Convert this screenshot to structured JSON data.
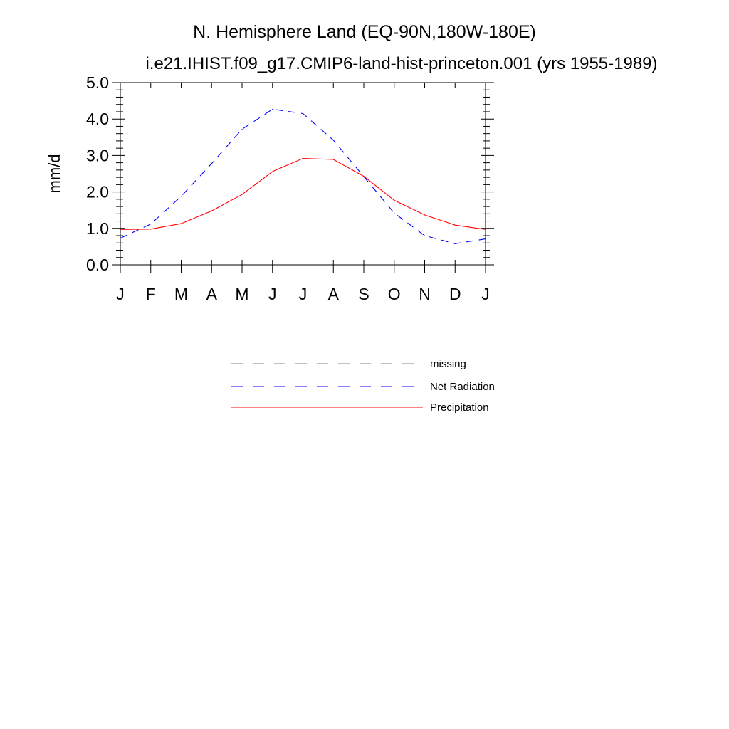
{
  "chart_data": {
    "type": "line",
    "title": "N. Hemisphere Land (EQ-90N,180W-180E)",
    "subtitle": "i.e21.IHIST.f09_g17.CMIP6-land-hist-princeton.001 (yrs 1955-1989)",
    "xlabel": "",
    "ylabel": "mm/d",
    "categories": [
      "J",
      "F",
      "M",
      "A",
      "M",
      "J",
      "J",
      "A",
      "S",
      "O",
      "N",
      "D",
      "J"
    ],
    "ylim": [
      0,
      5
    ],
    "yticks": [
      "0.0",
      "1.0",
      "2.0",
      "3.0",
      "4.0",
      "5.0"
    ],
    "ytick_values": [
      0,
      1,
      2,
      3,
      4,
      5
    ],
    "grid": false,
    "legend_position": "bottom-center",
    "legend": [
      {
        "name": "missing",
        "color": "#808080",
        "dash": "dashed"
      },
      {
        "name": "Net Radiation",
        "color": "#0000ff",
        "dash": "dashed"
      },
      {
        "name": "Precipitation",
        "color": "#ff0000",
        "dash": "solid"
      }
    ],
    "series": [
      {
        "name": "Net Radiation",
        "color": "#0000ff",
        "dash": "dashed",
        "values": [
          0.73,
          1.12,
          1.88,
          2.78,
          3.72,
          4.27,
          4.15,
          3.42,
          2.42,
          1.42,
          0.8,
          0.58,
          0.71
        ]
      },
      {
        "name": "Precipitation",
        "color": "#ff0000",
        "dash": "solid",
        "values": [
          0.97,
          0.98,
          1.13,
          1.48,
          1.93,
          2.56,
          2.92,
          2.89,
          2.43,
          1.77,
          1.37,
          1.09,
          0.97
        ]
      }
    ]
  }
}
